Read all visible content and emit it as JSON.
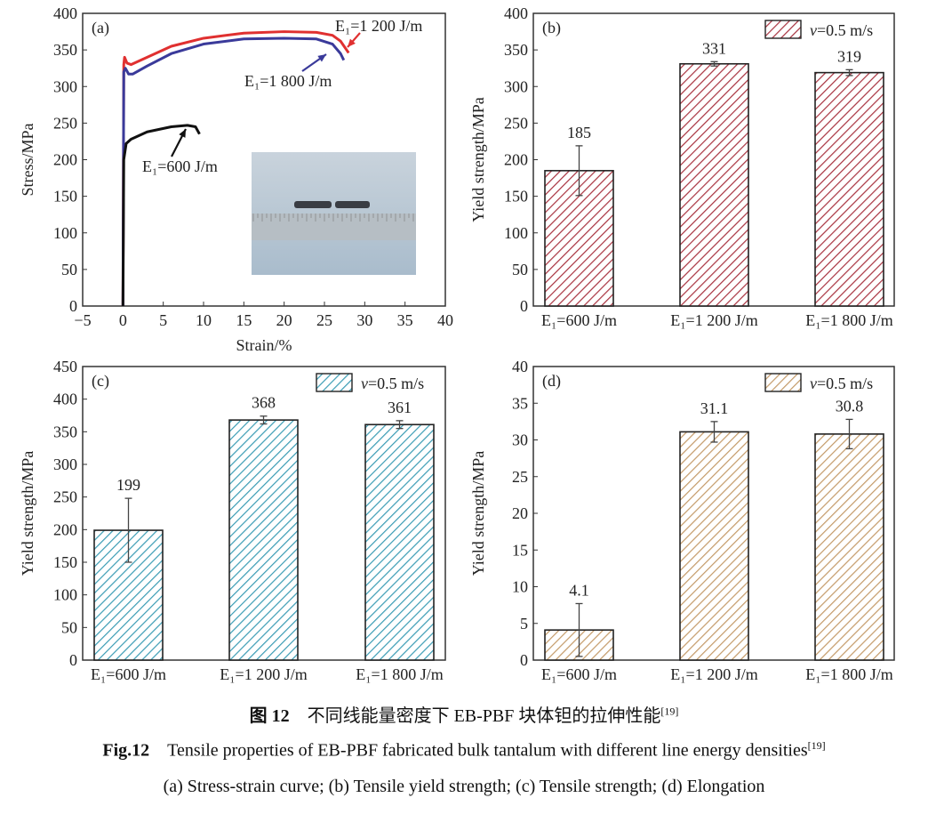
{
  "chart_data": [
    {
      "type": "line",
      "panel": "(a)",
      "xlabel": "Strain/%",
      "ylabel": "Stress/MPa",
      "xlim": [
        -5,
        40
      ],
      "ylim": [
        0,
        400
      ],
      "xticks": [
        -5,
        0,
        5,
        10,
        15,
        20,
        25,
        30,
        35,
        40
      ],
      "yticks": [
        0,
        50,
        100,
        150,
        200,
        250,
        300,
        350,
        400
      ],
      "series": [
        {
          "name": "E₁=1 200 J/m",
          "color": "#e03030",
          "points": [
            [
              0,
              0
            ],
            [
              0.1,
              330
            ],
            [
              0.2,
              340
            ],
            [
              0.5,
              332
            ],
            [
              1,
              330
            ],
            [
              3,
              340
            ],
            [
              6,
              355
            ],
            [
              10,
              366
            ],
            [
              15,
              373
            ],
            [
              20,
              375
            ],
            [
              24,
              374
            ],
            [
              26,
              370
            ],
            [
              27,
              362
            ],
            [
              28,
              346
            ]
          ]
        },
        {
          "name": "E₁=1 800 J/m",
          "color": "#3a3a9a",
          "points": [
            [
              0,
              0
            ],
            [
              0.1,
              320
            ],
            [
              0.3,
              325
            ],
            [
              0.7,
              317
            ],
            [
              1.2,
              317
            ],
            [
              3,
              328
            ],
            [
              6,
              345
            ],
            [
              10,
              358
            ],
            [
              15,
              365
            ],
            [
              20,
              366
            ],
            [
              24,
              365
            ],
            [
              26,
              358
            ],
            [
              27,
              345
            ],
            [
              27.4,
              336
            ]
          ]
        },
        {
          "name": "E₁=600 J/m",
          "color": "#111111",
          "points": [
            [
              0,
              0
            ],
            [
              0.1,
              200
            ],
            [
              0.4,
              222
            ],
            [
              1,
              228
            ],
            [
              3,
              238
            ],
            [
              6,
              245
            ],
            [
              8,
              247
            ],
            [
              9,
              245
            ],
            [
              9.5,
              235
            ]
          ]
        }
      ]
    },
    {
      "type": "bar",
      "panel": "(b)",
      "ylabel": "Yield strength/MPa",
      "ylim": [
        0,
        400
      ],
      "yticks": [
        0,
        50,
        100,
        150,
        200,
        250,
        300,
        350,
        400
      ],
      "categories": [
        "E₁=600 J/m",
        "E₁=1 200 J/m",
        "E₁=1 800 J/m"
      ],
      "values": [
        185,
        331,
        319
      ],
      "errors": [
        34,
        3,
        4
      ],
      "labels": [
        "185",
        "331",
        "319"
      ],
      "legend": "v=0.5 m/s",
      "color": "#a8323f"
    },
    {
      "type": "bar",
      "panel": "(c)",
      "ylabel": "Yield strength/MPa",
      "ylim": [
        0,
        450
      ],
      "yticks": [
        0,
        50,
        100,
        150,
        200,
        250,
        300,
        350,
        400,
        450
      ],
      "categories": [
        "E₁=600 J/m",
        "E₁=1 200 J/m",
        "E₁=1 800 J/m"
      ],
      "values": [
        199,
        368,
        361
      ],
      "errors": [
        49,
        6,
        6
      ],
      "labels": [
        "199",
        "368",
        "361"
      ],
      "legend": "v=0.5 m/s",
      "color": "#3a9cb4"
    },
    {
      "type": "bar",
      "panel": "(d)",
      "ylabel": "Yield strength/MPa",
      "ylim": [
        0,
        40
      ],
      "yticks": [
        0,
        5,
        10,
        15,
        20,
        25,
        30,
        35,
        40
      ],
      "categories": [
        "E₁=600 J/m",
        "E₁=1 200 J/m",
        "E₁=1 800 J/m"
      ],
      "values": [
        4.1,
        31.1,
        30.8
      ],
      "errors": [
        3.6,
        1.4,
        2.0
      ],
      "labels": [
        "4.1",
        "31.1",
        "30.8"
      ],
      "legend": "v=0.5 m/s",
      "color": "#c49a68"
    }
  ],
  "caption": {
    "cn_num": "图 12",
    "cn_text": "不同线能量密度下 EB-PBF 块体钽的拉伸性能",
    "cn_ref": "[19]",
    "en_num": "Fig.12",
    "en_text": "Tensile properties of EB-PBF fabricated bulk tantalum with different line energy densities",
    "en_ref": "[19]",
    "sub": "(a) Stress-strain curve; (b) Tensile yield strength; (c) Tensile strength; (d) Elongation"
  }
}
